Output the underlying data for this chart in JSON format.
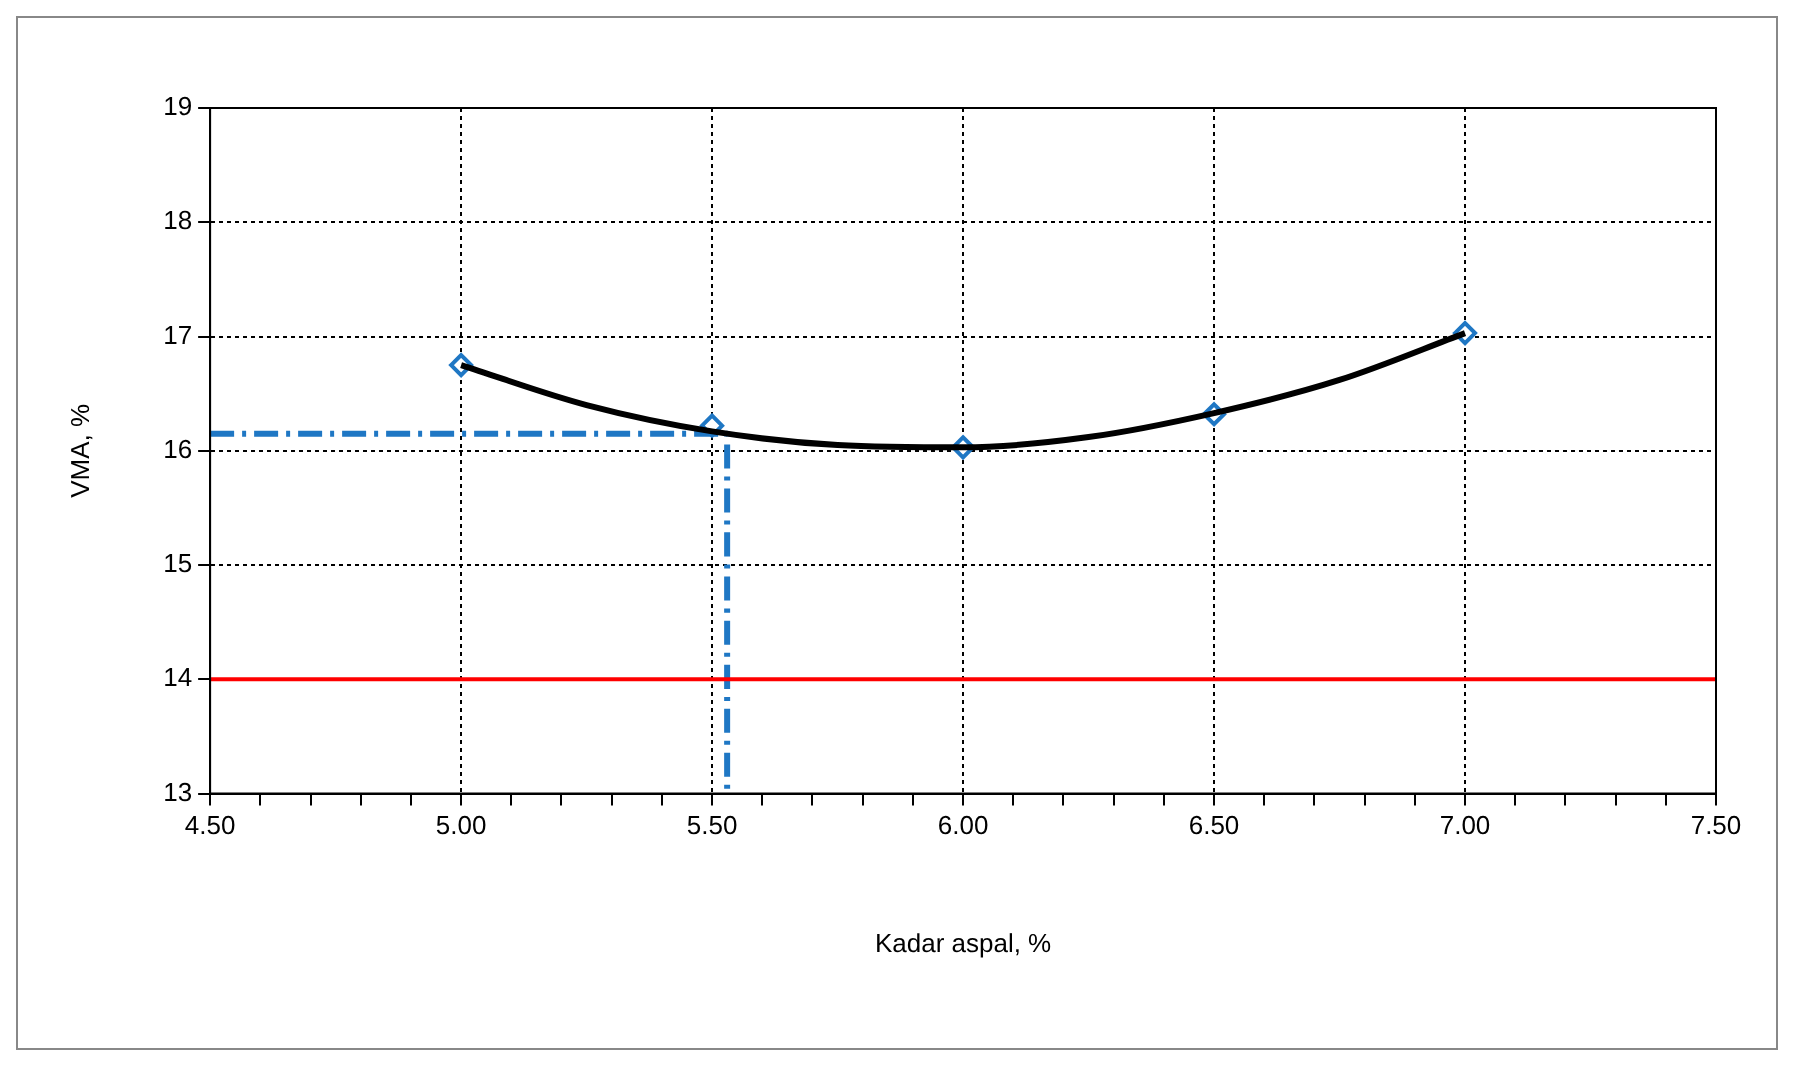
{
  "chart_data": {
    "type": "scatter",
    "xlabel": "Kadar aspal, %",
    "ylabel": "VMA, %",
    "xlim": [
      4.5,
      7.5
    ],
    "ylim": [
      13,
      19
    ],
    "xticks": [
      {
        "value": 4.5,
        "label": "4.50"
      },
      {
        "value": 4.6,
        "label": null
      },
      {
        "value": 4.7,
        "label": null
      },
      {
        "value": 4.8,
        "label": null
      },
      {
        "value": 4.9,
        "label": null
      },
      {
        "value": 5,
        "label": "5.00"
      },
      {
        "value": 5.1,
        "label": null
      },
      {
        "value": 5.2,
        "label": null
      },
      {
        "value": 5.3,
        "label": null
      },
      {
        "value": 5.4,
        "label": null
      },
      {
        "value": 5.5,
        "label": "5.50"
      },
      {
        "value": 5.6,
        "label": null
      },
      {
        "value": 5.7,
        "label": null
      },
      {
        "value": 5.8,
        "label": null
      },
      {
        "value": 5.9,
        "label": null
      },
      {
        "value": 6,
        "label": "6.00"
      },
      {
        "value": 6.1,
        "label": null
      },
      {
        "value": 6.2,
        "label": null
      },
      {
        "value": 6.3,
        "label": null
      },
      {
        "value": 6.4,
        "label": null
      },
      {
        "value": 6.5,
        "label": "6.50"
      },
      {
        "value": 6.6,
        "label": null
      },
      {
        "value": 6.7,
        "label": null
      },
      {
        "value": 6.8,
        "label": null
      },
      {
        "value": 6.9,
        "label": null
      },
      {
        "value": 7,
        "label": "7.00"
      },
      {
        "value": 7.1,
        "label": null
      },
      {
        "value": 7.2,
        "label": null
      },
      {
        "value": 7.3,
        "label": null
      },
      {
        "value": 7.4,
        "label": null
      },
      {
        "value": 7.5,
        "label": "7.50"
      }
    ],
    "yticks": [
      13,
      14,
      15,
      16,
      17,
      18,
      19
    ],
    "grid": true,
    "legend": false,
    "ref_lines": [
      {
        "axis": "y",
        "value": 14,
        "color": "#ff0000"
      }
    ],
    "series": [
      {
        "type": "line",
        "color": "#000000",
        "marker": "none",
        "line_style": "solid",
        "x": [
          5.0,
          5.25,
          5.5,
          5.75,
          6.0,
          6.25,
          6.5,
          6.75,
          7.0
        ],
        "values": [
          16.75,
          16.4,
          16.17,
          16.05,
          16.03,
          16.12,
          16.33,
          16.62,
          17.03
        ]
      },
      {
        "type": "line",
        "color": "#1f77c4",
        "marker": "none",
        "line_style": "dashed",
        "x": [
          4.5,
          5.53,
          5.53
        ],
        "values": [
          16.15,
          16.15,
          13
        ]
      },
      {
        "color": "#1f77c4",
        "marker": "diamond",
        "x": [
          5.0,
          5.5,
          6.0,
          6.5,
          7.0
        ],
        "values": [
          16.75,
          16.22,
          16.03,
          16.32,
          17.03
        ]
      }
    ]
  }
}
